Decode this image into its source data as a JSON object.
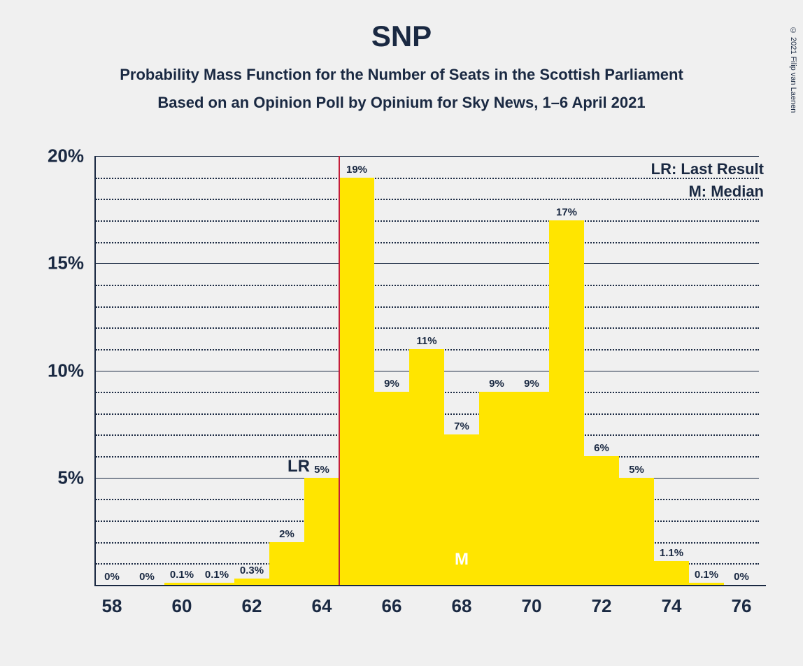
{
  "copyright": "© 2021 Filip van Laenen",
  "title": "SNP",
  "subtitle1": "Probability Mass Function for the Number of Seats in the Scottish Parliament",
  "subtitle2": "Based on an Opinion Poll by Opinium for Sky News, 1–6 April 2021",
  "legend": {
    "lr": "LR: Last Result",
    "m": "M: Median"
  },
  "chart": {
    "type": "bar",
    "bar_color": "#ffe500",
    "background_color": "#f0f0f0",
    "axis_color": "#1a2942",
    "grid_major_color": "#1a2942",
    "grid_minor_color": "#1a2942",
    "lr_line_color": "#c41e3a",
    "bar_width_ratio": 1.0,
    "xlim": [
      57.5,
      76.5
    ],
    "ylim": [
      0,
      20
    ],
    "y_major_step": 5,
    "y_minor_step": 1,
    "x_label_step": 2,
    "lr_x": 64.5,
    "median_x": 68,
    "lr_text": "LR",
    "m_text": "M",
    "title_fontsize": 42,
    "subtitle_fontsize": 22,
    "axis_label_fontsize": 26,
    "bar_label_fontsize": 15,
    "series": [
      {
        "x": 58,
        "y": 0,
        "label": "0%"
      },
      {
        "x": 59,
        "y": 0,
        "label": "0%"
      },
      {
        "x": 60,
        "y": 0.1,
        "label": "0.1%"
      },
      {
        "x": 61,
        "y": 0.1,
        "label": "0.1%"
      },
      {
        "x": 62,
        "y": 0.3,
        "label": "0.3%"
      },
      {
        "x": 63,
        "y": 2,
        "label": "2%"
      },
      {
        "x": 64,
        "y": 5,
        "label": "5%"
      },
      {
        "x": 65,
        "y": 19,
        "label": "19%"
      },
      {
        "x": 66,
        "y": 9,
        "label": "9%"
      },
      {
        "x": 67,
        "y": 11,
        "label": "11%"
      },
      {
        "x": 68,
        "y": 7,
        "label": "7%"
      },
      {
        "x": 69,
        "y": 9,
        "label": "9%"
      },
      {
        "x": 70,
        "y": 9,
        "label": "9%"
      },
      {
        "x": 71,
        "y": 17,
        "label": "17%"
      },
      {
        "x": 72,
        "y": 6,
        "label": "6%"
      },
      {
        "x": 73,
        "y": 5,
        "label": "5%"
      },
      {
        "x": 74,
        "y": 1.1,
        "label": "1.1%"
      },
      {
        "x": 75,
        "y": 0.1,
        "label": "0.1%"
      },
      {
        "x": 76,
        "y": 0,
        "label": "0%"
      }
    ]
  }
}
